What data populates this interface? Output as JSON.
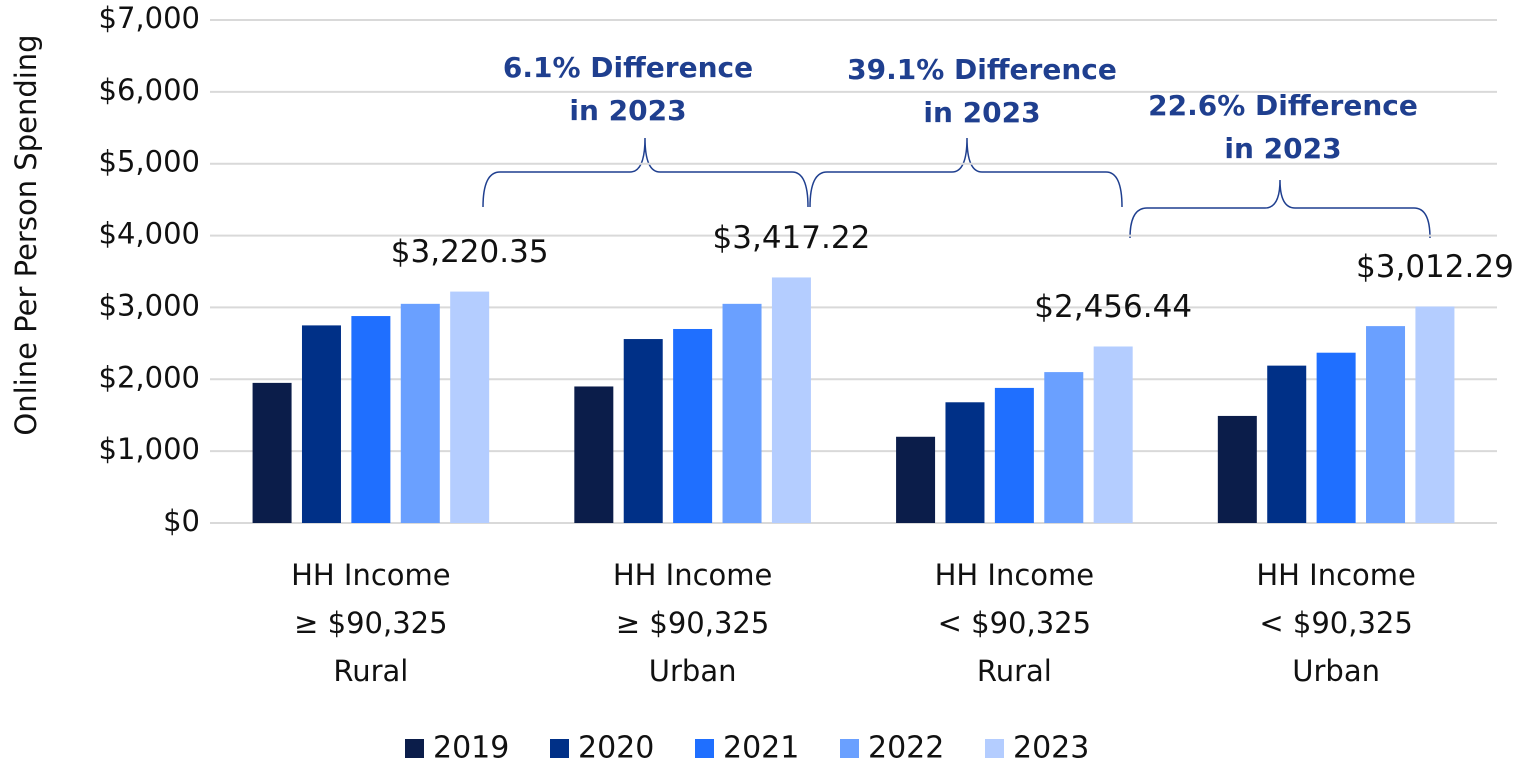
{
  "chart_data": {
    "type": "bar",
    "y_label": "Online Per Person Spending",
    "categories": [
      "HH Income\n≥ $90,325\nRural",
      "HH Income\n≥ $90,325\nUrban",
      "HH Income\n< $90,325\nRural",
      "HH Income\n< $90,325\nUrban"
    ],
    "series": [
      {
        "name": "2019",
        "color": "#0b1d4a",
        "values": [
          1950,
          1900,
          1200,
          1490
        ]
      },
      {
        "name": "2020",
        "color": "#003087",
        "values": [
          2750,
          2560,
          1680,
          2190
        ]
      },
      {
        "name": "2021",
        "color": "#1f6fff",
        "values": [
          2880,
          2700,
          1880,
          2370
        ]
      },
      {
        "name": "2022",
        "color": "#6aa0ff",
        "values": [
          3050,
          3050,
          2100,
          2740
        ]
      },
      {
        "name": "2023",
        "color": "#b4cdff",
        "values": [
          3220.35,
          3417.22,
          2456.44,
          3012.29
        ],
        "value_labels": [
          "$3,220.35",
          "$3,417.22",
          "$2,456.44",
          "$3,012.29"
        ]
      }
    ],
    "ylim": [
      0,
      7000
    ],
    "yticks": [
      {
        "value": 0,
        "label": "$0"
      },
      {
        "value": 1000,
        "label": "$1,000"
      },
      {
        "value": 2000,
        "label": "$2,000"
      },
      {
        "value": 3000,
        "label": "$3,000"
      },
      {
        "value": 4000,
        "label": "$4,000"
      },
      {
        "value": 5000,
        "label": "$5,000"
      },
      {
        "value": 6000,
        "label": "$6,000"
      },
      {
        "value": 7000,
        "label": "$7,000"
      }
    ],
    "grid": true,
    "legend": "bottom",
    "annotations": [
      "6.1% Difference\nin 2023",
      "39.1% Difference\nin 2023",
      "22.6% Difference\nin 2023"
    ]
  }
}
